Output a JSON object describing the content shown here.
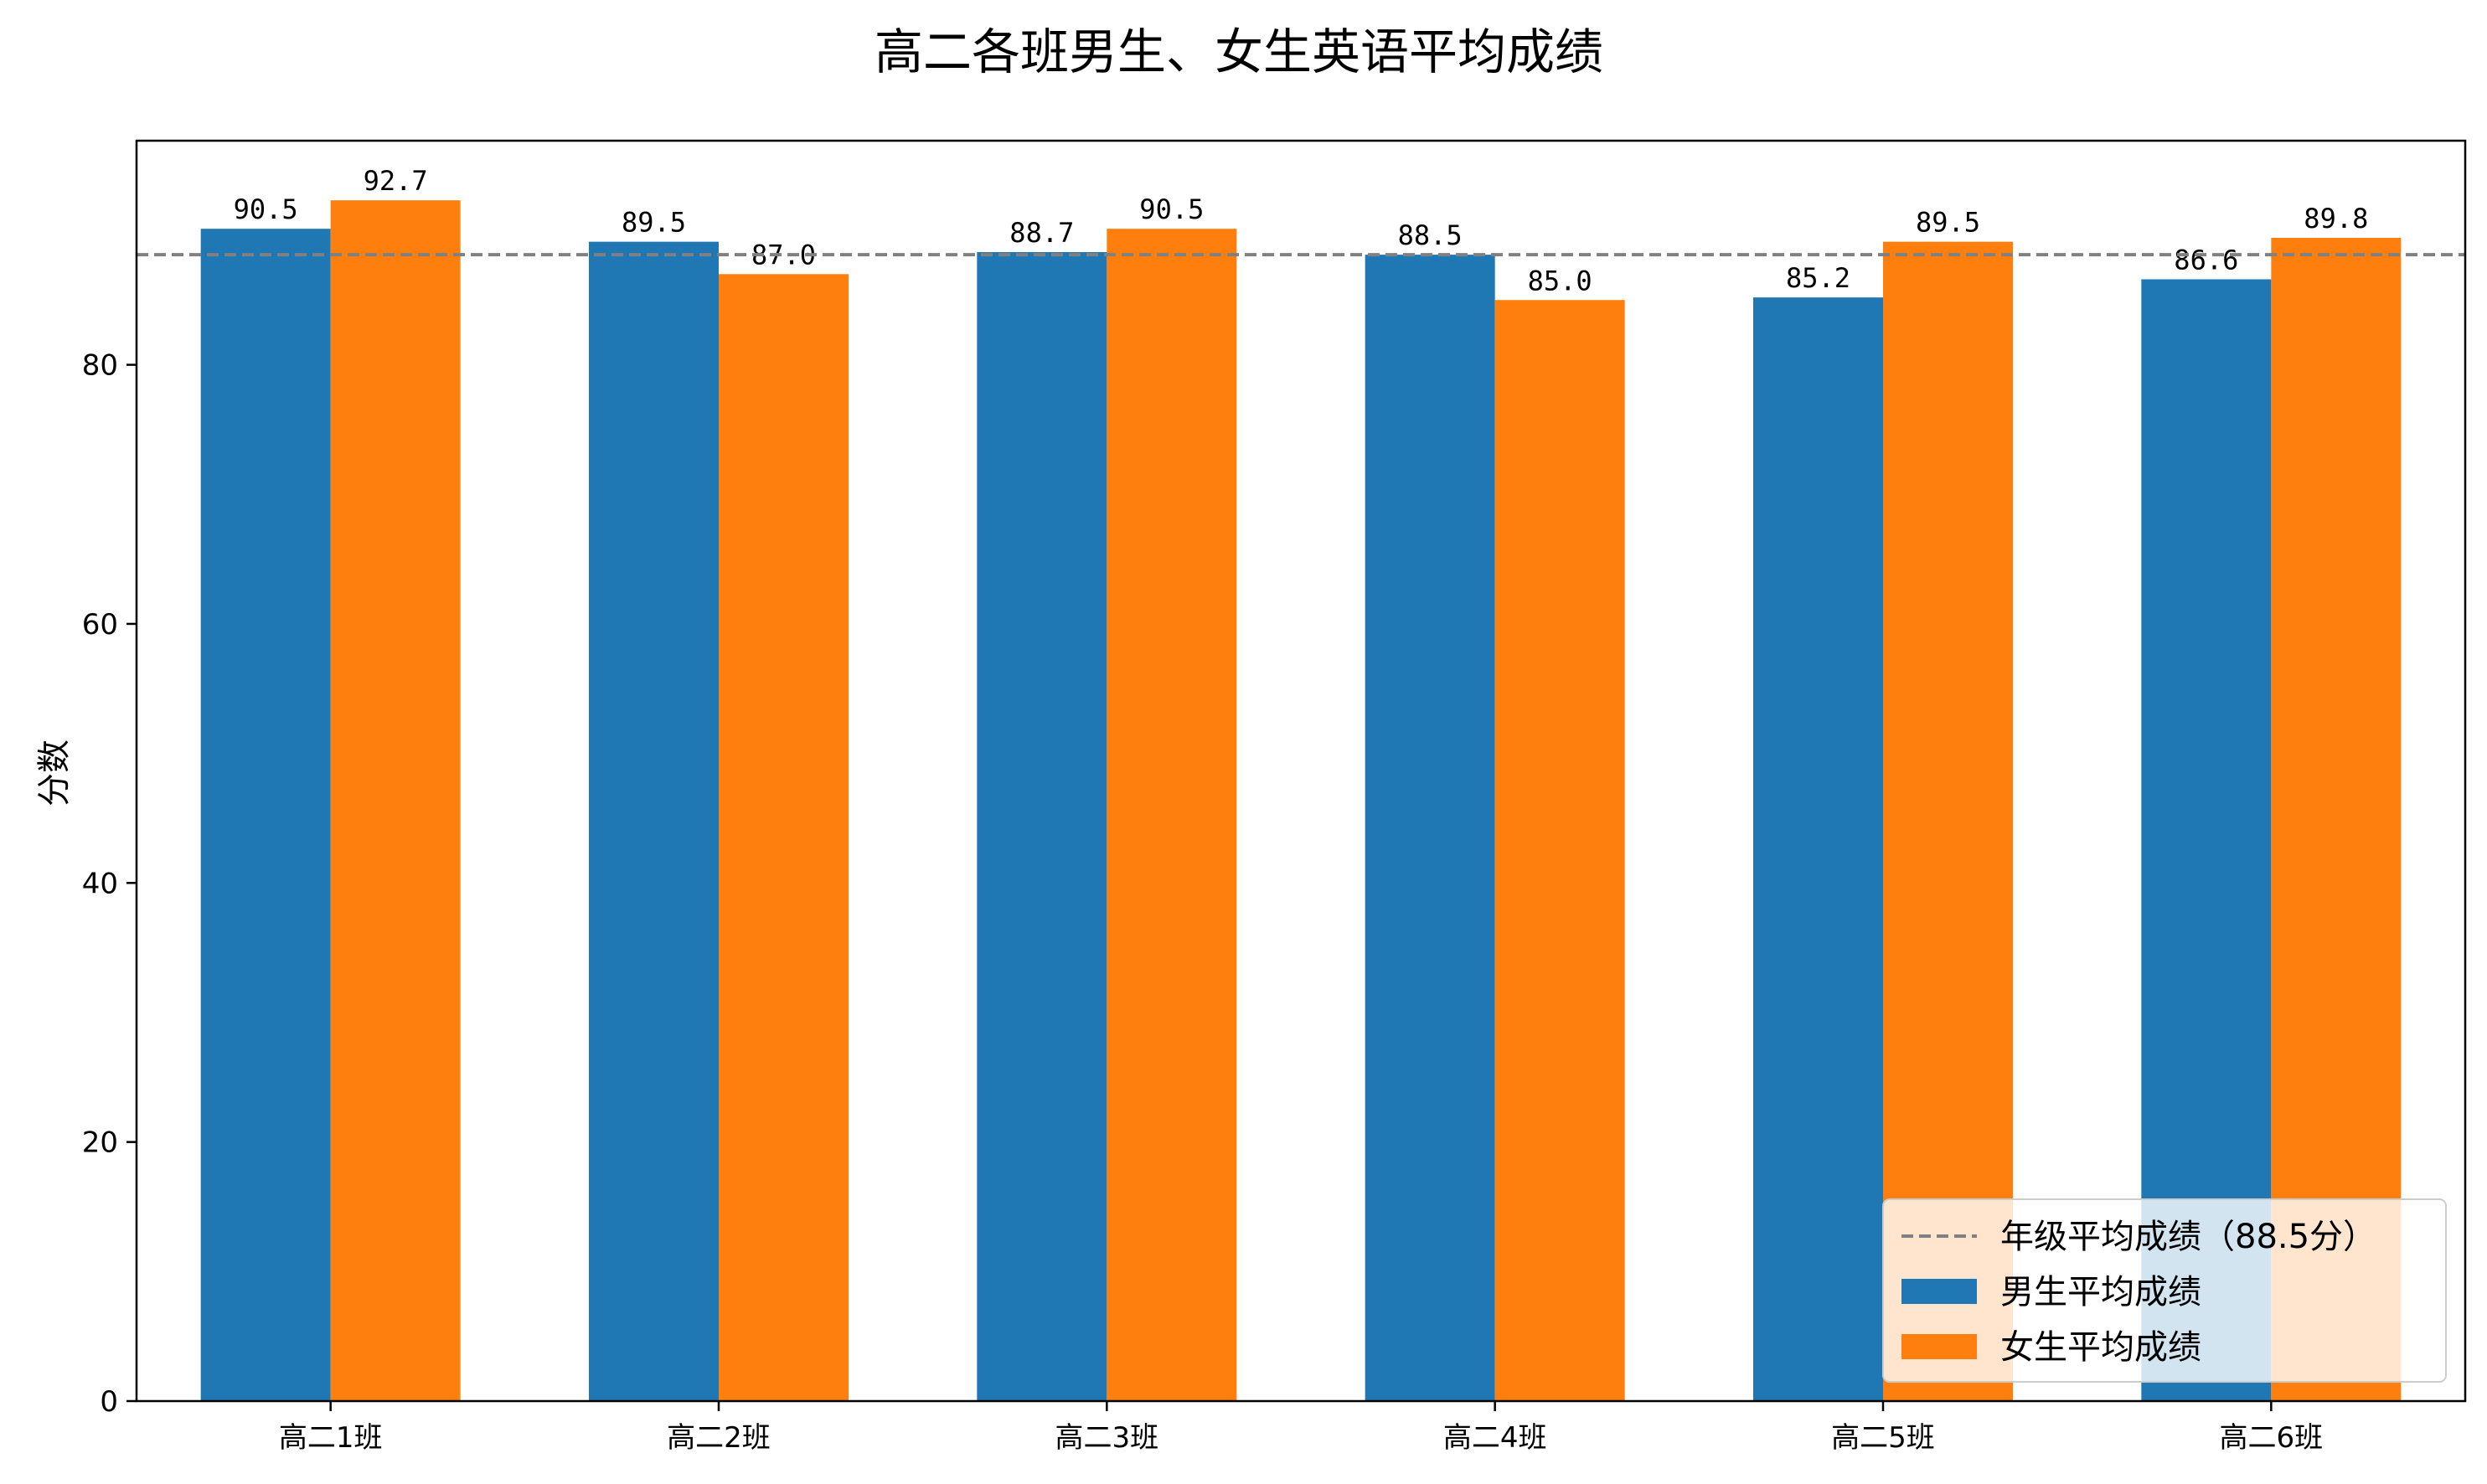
{
  "chart_data": {
    "type": "bar",
    "title": "高二各班男生、女生英语平均成绩",
    "xlabel": "",
    "ylabel": "分数",
    "categories": [
      "高二1班",
      "高二2班",
      "高二3班",
      "高二4班",
      "高二5班",
      "高二6班"
    ],
    "series": [
      {
        "name": "男生平均成绩",
        "color": "#1f77b4",
        "values": [
          90.5,
          89.5,
          88.7,
          88.5,
          85.2,
          86.6
        ],
        "labels": [
          "90.5",
          "89.5",
          "88.7",
          "88.5",
          "85.2",
          "86.6"
        ]
      },
      {
        "name": "女生平均成绩",
        "color": "#ff7f0e",
        "values": [
          92.7,
          87.0,
          90.5,
          85.0,
          89.5,
          89.8
        ],
        "labels": [
          "92.7",
          "87.0",
          "90.5",
          "85.0",
          "89.5",
          "89.8"
        ]
      }
    ],
    "reference_line": {
      "name": "年级平均成绩（88.5分）",
      "value": 88.5,
      "color": "#808080",
      "style": "dashed"
    },
    "ylim": [
      0,
      97.3
    ],
    "yticks": [
      0,
      20,
      40,
      60,
      80
    ],
    "grid": false,
    "legend_position": "lower-right"
  }
}
